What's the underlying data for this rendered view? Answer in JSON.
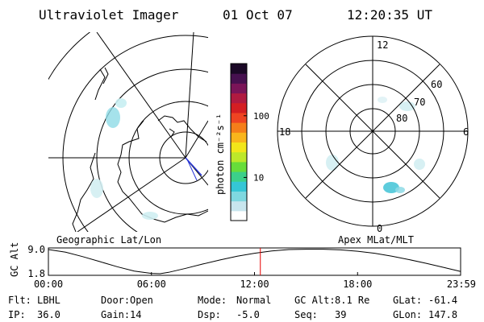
{
  "title": {
    "instrument": "Ultraviolet Imager",
    "date": "01 Oct 07",
    "time": "12:20:35 UT"
  },
  "left_panel": {
    "label": "Geographic Lat/Lon"
  },
  "right_panel": {
    "label": "Apex MLat/MLT",
    "mlt_labels": [
      "12",
      "18",
      "6",
      "0"
    ],
    "lat_labels": [
      "60",
      "70",
      "80"
    ]
  },
  "colorbar": {
    "unit_label": "photon cm⁻²s⁻¹",
    "ticks": [
      {
        "label": "100",
        "value": 100
      },
      {
        "label": "10",
        "value": 10
      }
    ],
    "range": [
      2,
      700
    ],
    "scale": "log",
    "colors": [
      "#ffffff",
      "#c8e6ee",
      "#7fd8e0",
      "#35c6d6",
      "#3cd08a",
      "#67dd3a",
      "#bde82a",
      "#f2e61a",
      "#f9b51c",
      "#f57e1a",
      "#ee4422",
      "#d41e22",
      "#b01a40",
      "#7a1458",
      "#46104f",
      "#1a0826"
    ]
  },
  "chart_data": {
    "type": "line",
    "title": "",
    "ylabel": "GC Alt",
    "y_ticks": [
      "9.0",
      "1.8"
    ],
    "ylim": [
      1.8,
      9.0
    ],
    "x_ticks": [
      "00:00",
      "06:00",
      "12:00",
      "18:00",
      "23:59"
    ],
    "xlim": [
      0,
      24
    ],
    "series": [
      {
        "name": "",
        "x": [
          0,
          1,
          2,
          3,
          4,
          5,
          6,
          6.5,
          7,
          8,
          9,
          10,
          11,
          12,
          13,
          14,
          15,
          16,
          17,
          18,
          19,
          20,
          21,
          22,
          23,
          23.98
        ],
        "y": [
          9.0,
          8.2,
          6.9,
          5.4,
          3.9,
          2.6,
          1.9,
          1.8,
          2.2,
          3.4,
          4.7,
          5.9,
          7.0,
          7.9,
          8.6,
          9.0,
          9.1,
          9.1,
          8.9,
          8.5,
          7.9,
          7.0,
          6.0,
          4.9,
          3.7,
          2.5
        ]
      }
    ],
    "current_time": 12.34,
    "current_time_color": "#e60000"
  },
  "footer": {
    "rows": [
      [
        {
          "label": "Flt:",
          "value": "LBHL"
        },
        {
          "label": "Door:",
          "value": "Open"
        },
        {
          "label": "Mode:",
          "value": "Normal"
        },
        {
          "label": "GC Alt:",
          "value": "8.1 Re"
        },
        {
          "label": "GLat:",
          "value": "-61.4"
        }
      ],
      [
        {
          "label": "IP:",
          "value": "36.0"
        },
        {
          "label": "Gain:",
          "value": "14"
        },
        {
          "label": "Dsp:",
          "value": "-5.0"
        },
        {
          "label": "Seq:",
          "value": "39"
        },
        {
          "label": "GLon:",
          "value": "147.8"
        }
      ]
    ]
  }
}
